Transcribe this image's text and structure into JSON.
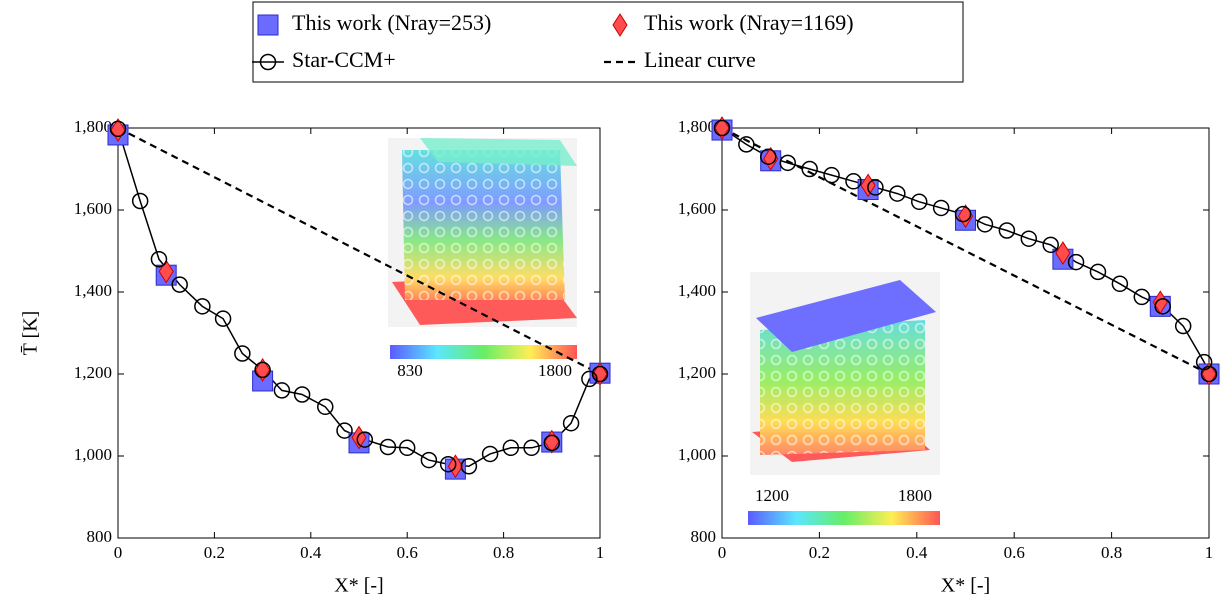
{
  "chart_data": [
    {
      "type": "line",
      "ylabel": "T̄ [K]",
      "xlabel": "X* [-]",
      "xlim": [
        0,
        1
      ],
      "xticks": [
        0,
        0.2,
        0.4,
        0.6,
        0.8,
        1
      ],
      "ylim": [
        800,
        1800
      ],
      "yticks": [
        {
          "value": 800,
          "label": "800"
        },
        {
          "value": 1000,
          "label": "1,000"
        },
        {
          "value": 1200,
          "label": "1,200"
        },
        {
          "value": 1400,
          "label": "1,400"
        },
        {
          "value": 1600,
          "label": "1,600"
        },
        {
          "value": 1800,
          "label": "1,800"
        }
      ],
      "inset_colorbar_labels": [
        830,
        1800
      ],
      "series": [
        {
          "name": "This work (Nray=253)",
          "color": "#6b6bff",
          "marker": "square",
          "x": [
            0,
            0.1,
            0.3,
            0.5,
            0.7,
            0.9,
            1
          ],
          "values": [
            1783,
            1441,
            1183,
            1032,
            968,
            1034,
            1202
          ]
        },
        {
          "name": "This work (Nray=1169)",
          "color": "#ff4d4d",
          "marker": "diamond",
          "x": [
            0,
            0.1,
            0.3,
            0.5,
            0.7,
            0.9,
            1
          ],
          "values": [
            1795,
            1450,
            1210,
            1045,
            975,
            1035,
            1200
          ]
        },
        {
          "name": "Star-CCM+",
          "color": "#000000",
          "marker": "circle",
          "line": "solid",
          "x": [
            0,
            0.046,
            0.085,
            0.128,
            0.175,
            0.218,
            0.258,
            0.3,
            0.34,
            0.382,
            0.43,
            0.47,
            0.512,
            0.56,
            0.6,
            0.645,
            0.685,
            0.728,
            0.772,
            0.815,
            0.858,
            0.9,
            0.94,
            0.978,
            1
          ],
          "values": [
            1798,
            1622,
            1480,
            1418,
            1365,
            1335,
            1250,
            1210,
            1160,
            1150,
            1120,
            1062,
            1040,
            1022,
            1020,
            990,
            980,
            975,
            1005,
            1020,
            1020,
            1032,
            1080,
            1188,
            1200
          ]
        },
        {
          "name": "Linear curve",
          "color": "#000000",
          "line": "dashed",
          "x": [
            0,
            1
          ],
          "values": [
            1800,
            1200
          ]
        }
      ]
    },
    {
      "type": "line",
      "xlabel": "X* [-]",
      "xlim": [
        0,
        1
      ],
      "xticks": [
        0,
        0.2,
        0.4,
        0.6,
        0.8,
        1
      ],
      "ylim": [
        800,
        1800
      ],
      "yticks": [
        {
          "value": 800,
          "label": "800"
        },
        {
          "value": 1000,
          "label": "1,000"
        },
        {
          "value": 1200,
          "label": "1,200"
        },
        {
          "value": 1400,
          "label": "1,400"
        },
        {
          "value": 1600,
          "label": "1,600"
        },
        {
          "value": 1800,
          "label": "1,800"
        }
      ],
      "inset_colorbar_labels": [
        1200,
        1800
      ],
      "series": [
        {
          "color": "#6b6bff",
          "marker": "square",
          "x": [
            0,
            0.1,
            0.3,
            0.5,
            0.7,
            0.9,
            1
          ],
          "values": [
            1795,
            1720,
            1650,
            1575,
            1480,
            1365,
            1200
          ]
        },
        {
          "color": "#ff4d4d",
          "marker": "diamond",
          "x": [
            0,
            0.1,
            0.3,
            0.5,
            0.7,
            0.9,
            1
          ],
          "values": [
            1800,
            1725,
            1660,
            1585,
            1495,
            1375,
            1200
          ]
        },
        {
          "color": "#000000",
          "marker": "circle",
          "line": "solid",
          "x": [
            0,
            0.05,
            0.095,
            0.135,
            0.18,
            0.225,
            0.27,
            0.315,
            0.36,
            0.405,
            0.45,
            0.495,
            0.54,
            0.585,
            0.63,
            0.675,
            0.727,
            0.772,
            0.817,
            0.862,
            0.905,
            0.947,
            0.99,
            1
          ],
          "values": [
            1800,
            1760,
            1730,
            1715,
            1700,
            1685,
            1670,
            1655,
            1640,
            1620,
            1605,
            1590,
            1565,
            1550,
            1530,
            1515,
            1473,
            1449,
            1420,
            1388,
            1365,
            1317,
            1229,
            1200
          ]
        },
        {
          "color": "#000000",
          "line": "dashed",
          "x": [
            0,
            1
          ],
          "values": [
            1800,
            1200
          ]
        }
      ]
    }
  ]
}
